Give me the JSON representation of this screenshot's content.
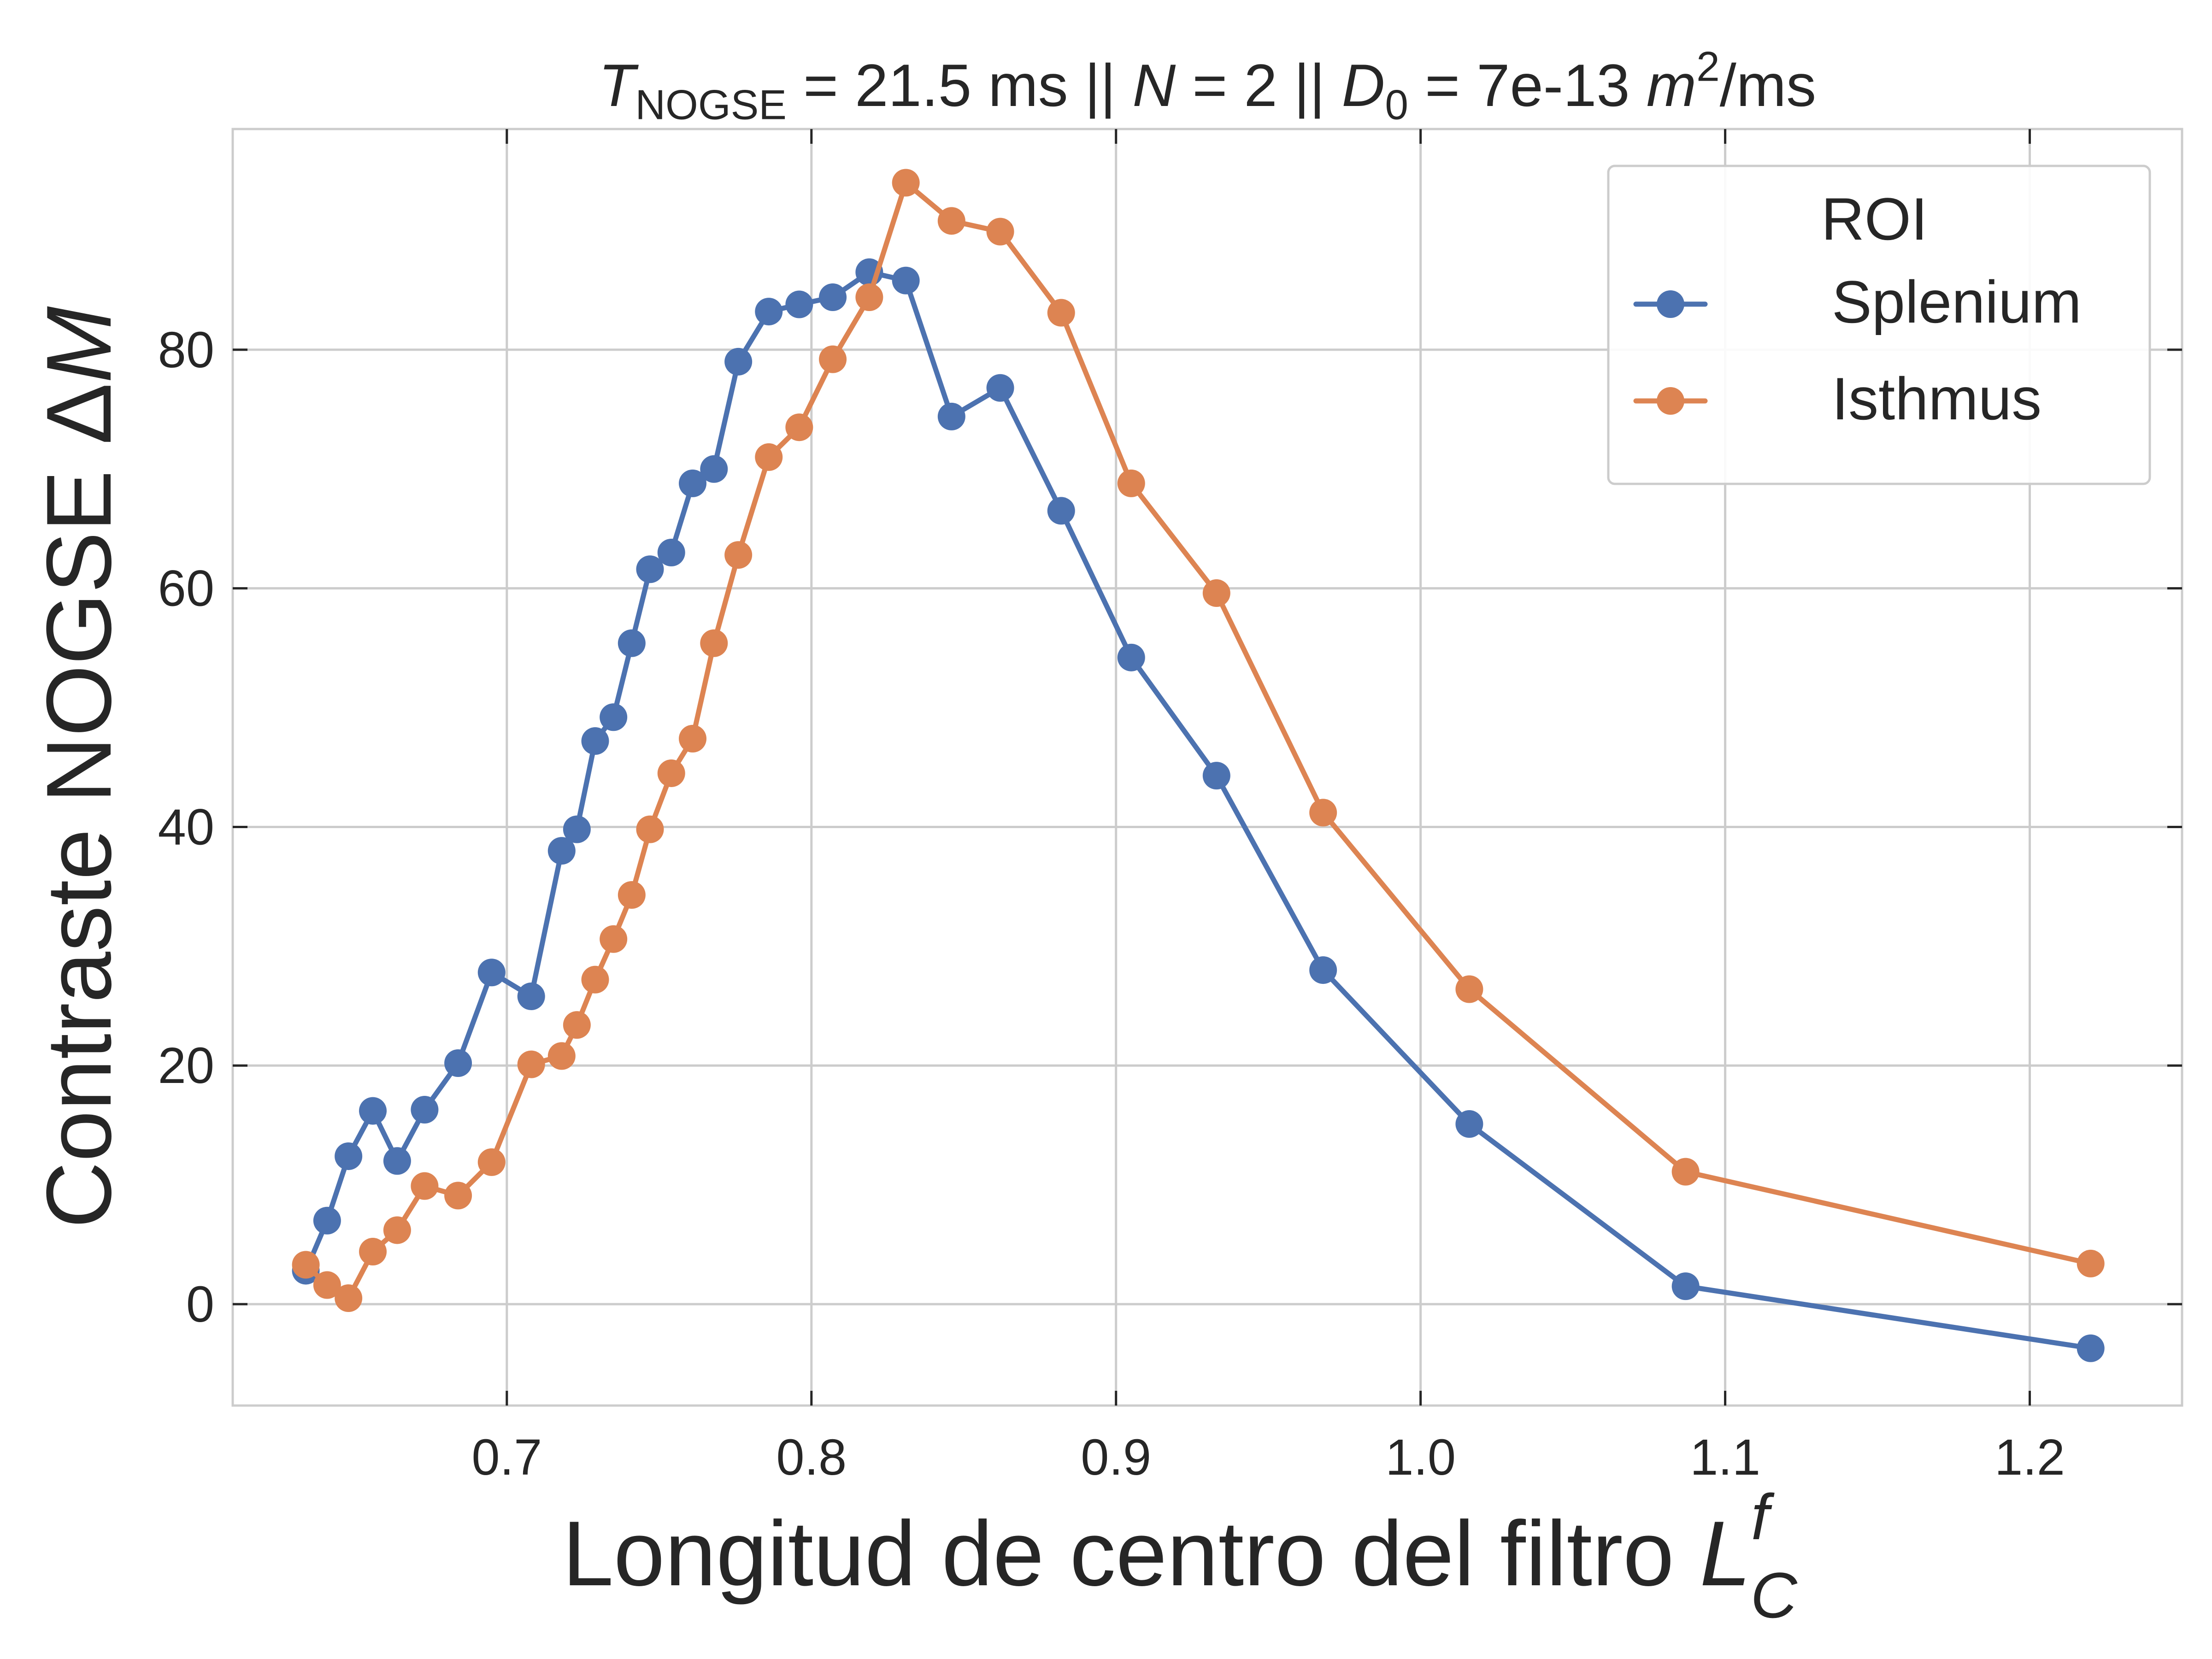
{
  "chart_data": {
    "type": "line",
    "title": {
      "parts": [
        {
          "text": "T",
          "style": "italic"
        },
        {
          "text": "NOGSE",
          "style": "sub"
        },
        {
          "text": " = 21.5 ms || ",
          "style": "normal"
        },
        {
          "text": "N",
          "style": "italic"
        },
        {
          "text": " = 2 || ",
          "style": "normal"
        },
        {
          "text": "D",
          "style": "italic"
        },
        {
          "text": "0",
          "style": "sub"
        },
        {
          "text": " = 7e-13 ",
          "style": "normal"
        },
        {
          "text": "m",
          "style": "italic"
        },
        {
          "text": "2",
          "style": "sup"
        },
        {
          "text": "/ms",
          "style": "normal"
        }
      ]
    },
    "xlabel": {
      "parts": [
        {
          "text": "Longitud de centro del filtro ",
          "style": "normal"
        },
        {
          "text": "L",
          "style": "italic"
        },
        {
          "text": "f",
          "style": "sup-italic"
        },
        {
          "text": "C",
          "style": "sub-italic"
        }
      ]
    },
    "ylabel": {
      "parts": [
        {
          "text": "Contraste NOGSE Δ",
          "style": "normal"
        },
        {
          "text": "M",
          "style": "italic"
        }
      ]
    },
    "xlim": [
      0.61,
      1.25
    ],
    "ylim": [
      -8.5,
      98.5
    ],
    "xticks": [
      0.7,
      0.8,
      0.9,
      1.0,
      1.1,
      1.2
    ],
    "xtick_labels": [
      "0.7",
      "0.8",
      "0.9",
      "1.0",
      "1.1",
      "1.2"
    ],
    "yticks": [
      0,
      20,
      40,
      60,
      80
    ],
    "ytick_labels": [
      "0",
      "20",
      "40",
      "60",
      "80"
    ],
    "grid": true,
    "legend": {
      "title": "ROI",
      "placement": "top-right"
    },
    "series": [
      {
        "name": "Splenium",
        "color": "#4c72b0",
        "x": [
          0.634,
          0.641,
          0.648,
          0.656,
          0.664,
          0.673,
          0.684,
          0.695,
          0.708,
          0.718,
          0.723,
          0.729,
          0.735,
          0.741,
          0.747,
          0.754,
          0.761,
          0.768,
          0.776,
          0.786,
          0.796,
          0.807,
          0.819,
          0.831,
          0.846,
          0.862,
          0.882,
          0.905,
          0.933,
          0.968,
          1.016,
          1.087,
          1.22
        ],
        "y": [
          2.8,
          7.0,
          12.4,
          16.2,
          12.0,
          16.3,
          20.2,
          27.8,
          25.8,
          38.0,
          39.8,
          47.2,
          49.2,
          55.4,
          61.6,
          63.0,
          68.8,
          70.0,
          79.0,
          83.2,
          83.8,
          84.4,
          86.5,
          85.8,
          74.4,
          76.8,
          66.5,
          54.2,
          44.3,
          28.0,
          15.1,
          1.5,
          -3.7
        ]
      },
      {
        "name": "Isthmus",
        "color": "#dd8452",
        "x": [
          0.634,
          0.641,
          0.648,
          0.656,
          0.664,
          0.673,
          0.684,
          0.695,
          0.708,
          0.718,
          0.723,
          0.729,
          0.735,
          0.741,
          0.747,
          0.754,
          0.761,
          0.768,
          0.776,
          0.786,
          0.796,
          0.807,
          0.819,
          0.831,
          0.846,
          0.862,
          0.882,
          0.905,
          0.933,
          0.968,
          1.016,
          1.087,
          1.22
        ],
        "y": [
          3.3,
          1.6,
          0.5,
          4.4,
          6.2,
          9.9,
          9.1,
          11.9,
          20.1,
          20.8,
          23.4,
          27.2,
          30.6,
          34.3,
          39.8,
          44.5,
          47.4,
          55.4,
          62.8,
          71.0,
          73.5,
          79.2,
          84.4,
          94.0,
          90.8,
          89.9,
          83.1,
          68.8,
          59.6,
          41.2,
          26.4,
          11.1,
          3.4
        ]
      }
    ]
  }
}
